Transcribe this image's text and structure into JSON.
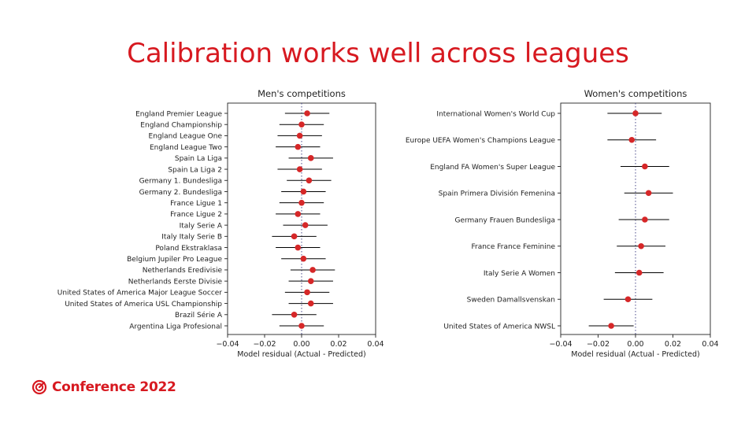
{
  "slide": {
    "title": "Calibration works well across leagues",
    "logo_text": "Conference 2022"
  },
  "colors": {
    "accent": "#d71920",
    "point": "#d62728",
    "errorbar": "#000000",
    "zero_line": "#4a4a8a"
  },
  "chart_data": [
    {
      "type": "scatter",
      "subtype": "forest-plot",
      "title": "Men's competitions",
      "xlabel": "Model residual (Actual - Predicted)",
      "ylabel": "",
      "xlim": [
        -0.04,
        0.04
      ],
      "xticks": [
        "−0.04",
        "−0.02",
        "0.00",
        "0.02",
        "0.04"
      ],
      "xtick_values": [
        -0.04,
        -0.02,
        0.0,
        0.02,
        0.04
      ],
      "reference_line": 0,
      "categories": [
        "England Premier League",
        "England Championship",
        "England League One",
        "England League Two",
        "Spain La Liga",
        "Spain La Liga 2",
        "Germany 1. Bundesliga",
        "Germany 2. Bundesliga",
        "France Ligue 1",
        "France Ligue 2",
        "Italy Serie A",
        "Italy Italy Serie B",
        "Poland Ekstraklasa",
        "Belgium Jupiler Pro League",
        "Netherlands Eredivisie",
        "Netherlands Eerste Divisie",
        "United States of America Major League Soccer",
        "United States of America USL Championship",
        "Brazil Série A",
        "Argentina Liga Profesional"
      ],
      "values": [
        0.003,
        0.0,
        -0.001,
        -0.002,
        0.005,
        -0.001,
        0.004,
        0.001,
        0.0,
        -0.002,
        0.002,
        -0.004,
        -0.002,
        0.001,
        0.006,
        0.005,
        0.003,
        0.005,
        -0.004,
        0.0
      ],
      "lower": [
        -0.009,
        -0.012,
        -0.013,
        -0.014,
        -0.007,
        -0.013,
        -0.008,
        -0.011,
        -0.012,
        -0.014,
        -0.01,
        -0.016,
        -0.014,
        -0.011,
        -0.006,
        -0.007,
        -0.009,
        -0.007,
        -0.016,
        -0.012
      ],
      "upper": [
        0.015,
        0.012,
        0.011,
        0.01,
        0.017,
        0.011,
        0.016,
        0.013,
        0.012,
        0.01,
        0.014,
        0.008,
        0.01,
        0.013,
        0.018,
        0.017,
        0.015,
        0.017,
        0.008,
        0.012
      ]
    },
    {
      "type": "scatter",
      "subtype": "forest-plot",
      "title": "Women's competitions",
      "xlabel": "Model residual (Actual - Predicted)",
      "ylabel": "",
      "xlim": [
        -0.04,
        0.04
      ],
      "xticks": [
        "−0.04",
        "−0.02",
        "0.00",
        "0.02",
        "0.04"
      ],
      "xtick_values": [
        -0.04,
        -0.02,
        0.0,
        0.02,
        0.04
      ],
      "reference_line": 0,
      "categories": [
        "International Women's World Cup",
        "Europe UEFA Women's Champions League",
        "England FA Women's Super League",
        "Spain Primera División Femenina",
        "Germany Frauen Bundesliga",
        "France France Feminine",
        "Italy Serie A Women",
        "Sweden Damallsvenskan",
        "United States of America NWSL"
      ],
      "values": [
        0.0,
        -0.002,
        0.005,
        0.007,
        0.005,
        0.003,
        0.002,
        -0.004,
        -0.013
      ],
      "lower": [
        -0.015,
        -0.015,
        -0.008,
        -0.006,
        -0.009,
        -0.01,
        -0.011,
        -0.017,
        -0.025
      ],
      "upper": [
        0.014,
        0.011,
        0.018,
        0.02,
        0.018,
        0.016,
        0.015,
        0.009,
        -0.001
      ]
    }
  ]
}
